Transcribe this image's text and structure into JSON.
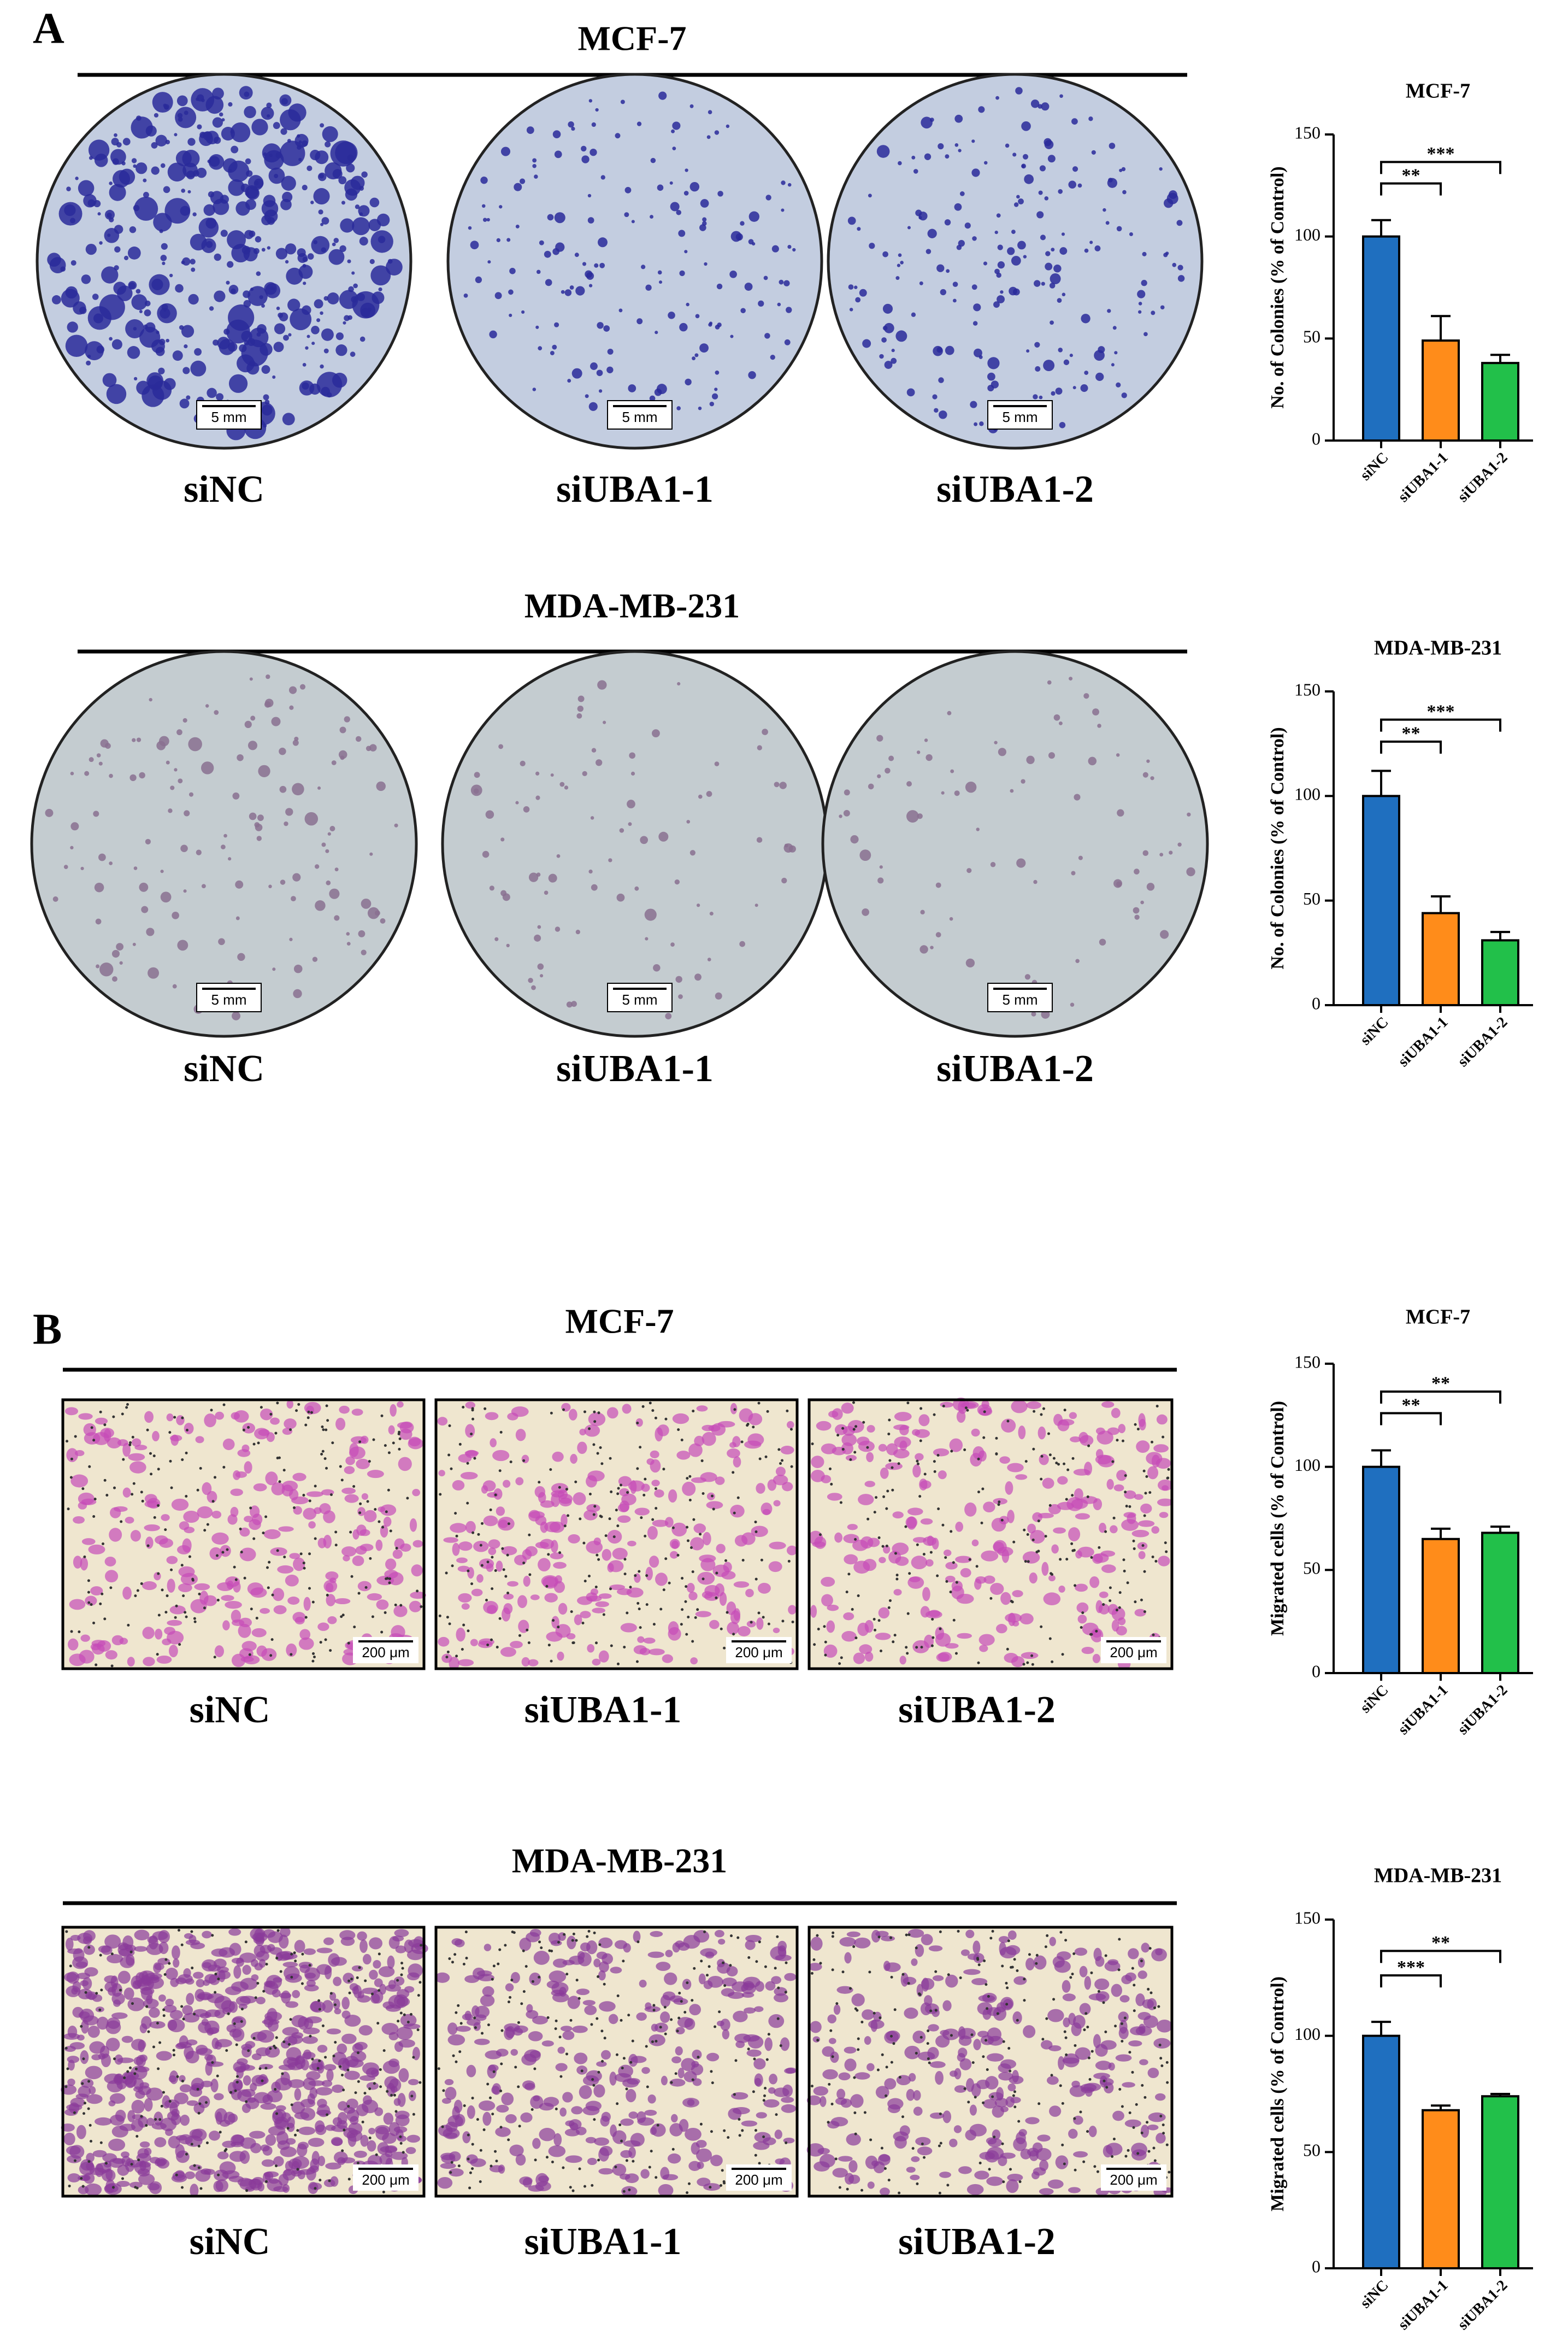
{
  "panels": [
    {
      "label": "A",
      "rows": [
        {
          "title": "MCF-7",
          "images": [
            {
              "label": "siNC",
              "scale_bar": "5 mm"
            },
            {
              "label": "siUBA1-1",
              "scale_bar": "5 mm"
            },
            {
              "label": "siUBA1-2",
              "scale_bar": "5 mm"
            }
          ]
        },
        {
          "title": "MDA-MB-231",
          "images": [
            {
              "label": "siNC",
              "scale_bar": "5 mm"
            },
            {
              "label": "siUBA1-1",
              "scale_bar": "5 mm"
            },
            {
              "label": "siUBA1-2",
              "scale_bar": "5 mm"
            }
          ]
        }
      ]
    },
    {
      "label": "B",
      "rows": [
        {
          "title": "MCF-7",
          "images": [
            {
              "label": "siNC",
              "scale_bar": "200 μm"
            },
            {
              "label": "siUBA1-1",
              "scale_bar": "200 μm"
            },
            {
              "label": "siUBA1-2",
              "scale_bar": "200 μm"
            }
          ]
        },
        {
          "title": "MDA-MB-231",
          "images": [
            {
              "label": "siNC",
              "scale_bar": "200 μm"
            },
            {
              "label": "siUBA1-1",
              "scale_bar": "200 μm"
            },
            {
              "label": "siUBA1-2",
              "scale_bar": "200 μm"
            }
          ]
        }
      ]
    }
  ],
  "chart_data": [
    {
      "type": "bar",
      "title": "MCF-7",
      "ylabel": "No. of Colonies (% of Control)",
      "categories": [
        "siNC",
        "siUBA1-1",
        "siUBA1-2"
      ],
      "values": [
        100,
        49,
        38
      ],
      "errors": [
        8,
        12,
        4
      ],
      "colors": [
        "#1f6fbf",
        "#ff8c1a",
        "#22c04a"
      ],
      "ylim": [
        0,
        150
      ],
      "yticks": [
        0,
        50,
        100,
        150
      ],
      "significance": [
        {
          "pair": [
            "siNC",
            "siUBA1-1"
          ],
          "label": "**"
        },
        {
          "pair": [
            "siNC",
            "siUBA1-2"
          ],
          "label": "***"
        }
      ]
    },
    {
      "type": "bar",
      "title": "MDA-MB-231",
      "ylabel": "No. of Colonies (% of Control)",
      "categories": [
        "siNC",
        "siUBA1-1",
        "siUBA1-2"
      ],
      "values": [
        100,
        44,
        31
      ],
      "errors": [
        12,
        8,
        4
      ],
      "colors": [
        "#1f6fbf",
        "#ff8c1a",
        "#22c04a"
      ],
      "ylim": [
        0,
        150
      ],
      "yticks": [
        0,
        50,
        100,
        150
      ],
      "significance": [
        {
          "pair": [
            "siNC",
            "siUBA1-1"
          ],
          "label": "**"
        },
        {
          "pair": [
            "siNC",
            "siUBA1-2"
          ],
          "label": "***"
        }
      ]
    },
    {
      "type": "bar",
      "title": "MCF-7",
      "ylabel": "Migrated cells (% of Control)",
      "categories": [
        "siNC",
        "siUBA1-1",
        "siUBA1-2"
      ],
      "values": [
        100,
        65,
        68
      ],
      "errors": [
        8,
        5,
        3
      ],
      "colors": [
        "#1f6fbf",
        "#ff8c1a",
        "#22c04a"
      ],
      "ylim": [
        0,
        150
      ],
      "yticks": [
        0,
        50,
        100,
        150
      ],
      "significance": [
        {
          "pair": [
            "siNC",
            "siUBA1-1"
          ],
          "label": "**"
        },
        {
          "pair": [
            "siNC",
            "siUBA1-2"
          ],
          "label": "**"
        }
      ]
    },
    {
      "type": "bar",
      "title": "MDA-MB-231",
      "ylabel": "Migrated cells (% of Control)",
      "categories": [
        "siNC",
        "siUBA1-1",
        "siUBA1-2"
      ],
      "values": [
        100,
        68,
        74
      ],
      "errors": [
        6,
        2,
        1
      ],
      "colors": [
        "#1f6fbf",
        "#ff8c1a",
        "#22c04a"
      ],
      "ylim": [
        0,
        150
      ],
      "yticks": [
        0,
        50,
        100,
        150
      ],
      "significance": [
        {
          "pair": [
            "siNC",
            "siUBA1-1"
          ],
          "label": "***"
        },
        {
          "pair": [
            "siNC",
            "siUBA1-2"
          ],
          "label": "**"
        }
      ]
    }
  ]
}
